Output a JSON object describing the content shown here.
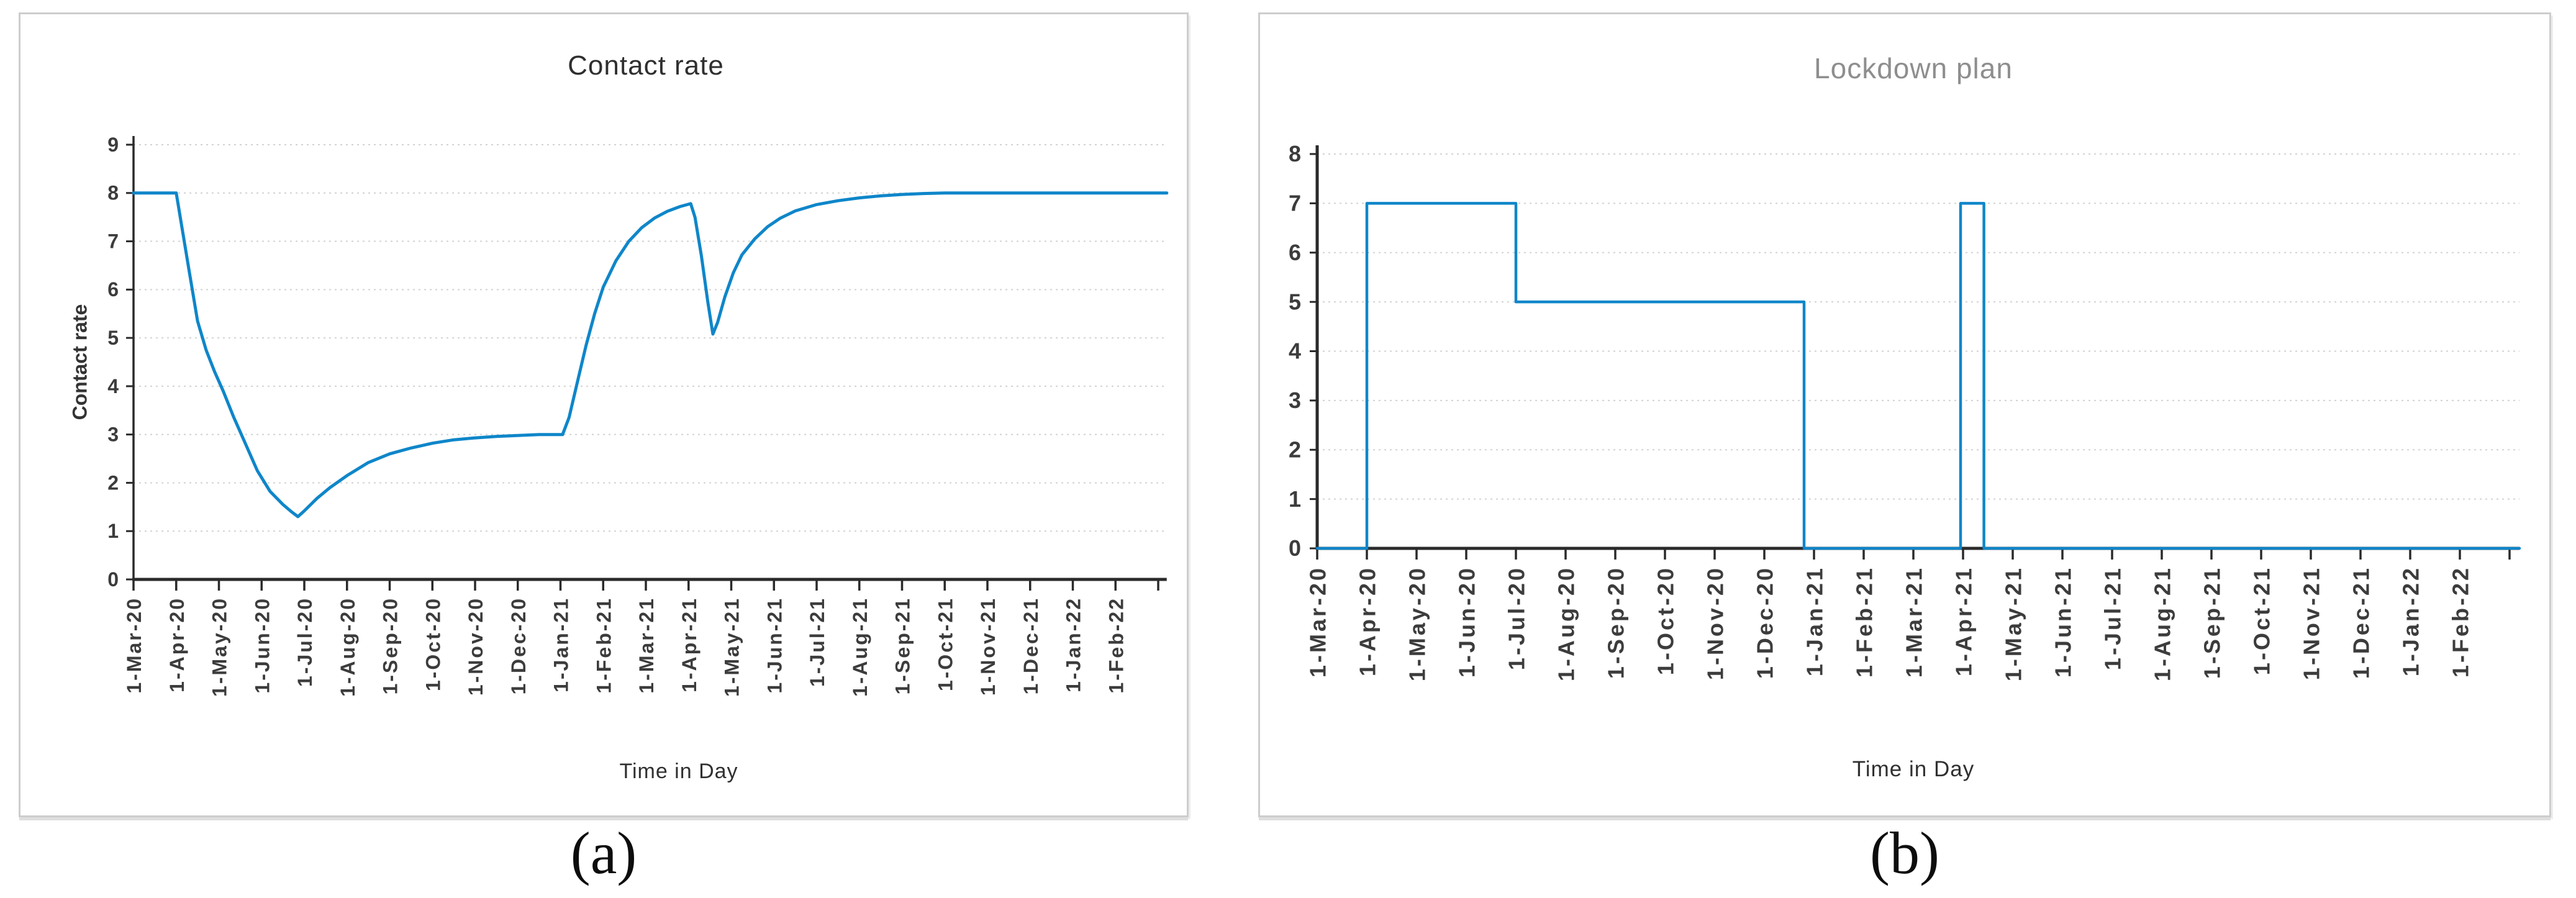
{
  "figure": {
    "panel_a": {
      "title": "Contact rate",
      "y_axis_title": "Contact rate",
      "x_axis_title": "Time in Day",
      "caption": "(a)"
    },
    "panel_b": {
      "title": "Lockdown plan",
      "x_axis_title": "Time in Day",
      "caption": "(b)"
    },
    "colors": {
      "line_blue": "#0f86c9",
      "axis": "#2a2a2a",
      "grid": "#d2d2d2",
      "tick_label": "#3c3c3c",
      "title_a": "#2f2f2f",
      "title_b": "#8e8e8e",
      "panel_border": "#cdcdcd"
    }
  },
  "chart_data": [
    {
      "id": "contact-rate",
      "type": "line",
      "title": "Contact rate",
      "xlabel": "Time in Day",
      "ylabel": "Contact rate",
      "x_unit": "months since 1-Mar-2020",
      "categories": [
        "1-Mar-20",
        "1-Apr-20",
        "1-May-20",
        "1-Jun-20",
        "1-Jul-20",
        "1-Aug-20",
        "1-Sep-20",
        "1-Oct-20",
        "1-Nov-20",
        "1-Dec-20",
        "1-Jan-21",
        "1-Feb-21",
        "1-Mar-21",
        "1-Apr-21",
        "1-May-21",
        "1-Jun-21",
        "1-Jul-21",
        "1-Aug-21",
        "1-Sep-21",
        "1-Oct-21",
        "1-Nov-21",
        "1-Dec-21",
        "1-Jan-22",
        "1-Feb-22"
      ],
      "xlim": [
        0,
        24.2
      ],
      "ylim": [
        0,
        9
      ],
      "y_ticks": [
        0,
        1,
        2,
        3,
        4,
        5,
        6,
        7,
        8,
        9
      ],
      "grid": "horizontal-dotted",
      "legend": "none",
      "series": [
        {
          "name": "Contact rate",
          "color": "#0f86c9",
          "points": [
            [
              0,
              8
            ],
            [
              1,
              8
            ],
            [
              1.15,
              7.2
            ],
            [
              1.3,
              6.4
            ],
            [
              1.5,
              5.35
            ],
            [
              1.7,
              4.75
            ],
            [
              1.9,
              4.3
            ],
            [
              2.1,
              3.9
            ],
            [
              2.35,
              3.35
            ],
            [
              2.6,
              2.85
            ],
            [
              2.9,
              2.25
            ],
            [
              3.2,
              1.82
            ],
            [
              3.5,
              1.55
            ],
            [
              3.7,
              1.4
            ],
            [
              3.85,
              1.3
            ],
            [
              4,
              1.42
            ],
            [
              4.3,
              1.68
            ],
            [
              4.6,
              1.9
            ],
            [
              5,
              2.15
            ],
            [
              5.5,
              2.42
            ],
            [
              6,
              2.6
            ],
            [
              6.5,
              2.72
            ],
            [
              7,
              2.82
            ],
            [
              7.5,
              2.89
            ],
            [
              8,
              2.93
            ],
            [
              8.5,
              2.96
            ],
            [
              9,
              2.98
            ],
            [
              9.5,
              3
            ],
            [
              10.05,
              3
            ],
            [
              10.2,
              3.35
            ],
            [
              10.4,
              4.1
            ],
            [
              10.6,
              4.85
            ],
            [
              10.8,
              5.5
            ],
            [
              11,
              6.05
            ],
            [
              11.3,
              6.6
            ],
            [
              11.6,
              7
            ],
            [
              11.9,
              7.28
            ],
            [
              12.2,
              7.48
            ],
            [
              12.5,
              7.62
            ],
            [
              12.8,
              7.72
            ],
            [
              13.05,
              7.78
            ],
            [
              13.15,
              7.5
            ],
            [
              13.3,
              6.7
            ],
            [
              13.45,
              5.75
            ],
            [
              13.57,
              5.08
            ],
            [
              13.68,
              5.32
            ],
            [
              13.85,
              5.85
            ],
            [
              14.05,
              6.35
            ],
            [
              14.25,
              6.72
            ],
            [
              14.55,
              7.05
            ],
            [
              14.85,
              7.3
            ],
            [
              15.15,
              7.48
            ],
            [
              15.5,
              7.63
            ],
            [
              16,
              7.76
            ],
            [
              16.5,
              7.84
            ],
            [
              17,
              7.9
            ],
            [
              17.5,
              7.94
            ],
            [
              18,
              7.97
            ],
            [
              18.5,
              7.99
            ],
            [
              19,
              8
            ],
            [
              24.2,
              8
            ]
          ]
        }
      ]
    },
    {
      "id": "lockdown-plan",
      "type": "step",
      "title": "Lockdown plan",
      "xlabel": "Time in Day",
      "ylabel": "",
      "x_unit": "months since 1-Mar-2020",
      "categories": [
        "1-Mar-20",
        "1-Apr-20",
        "1-May-20",
        "1-Jun-20",
        "1-Jul-20",
        "1-Aug-20",
        "1-Sep-20",
        "1-Oct-20",
        "1-Nov-20",
        "1-Dec-20",
        "1-Jan-21",
        "1-Feb-21",
        "1-Mar-21",
        "1-Apr-21",
        "1-May-21",
        "1-Jun-21",
        "1-Jul-21",
        "1-Aug-21",
        "1-Sep-21",
        "1-Oct-21",
        "1-Nov-21",
        "1-Dec-21",
        "1-Jan-22",
        "1-Feb-22"
      ],
      "xlim": [
        0,
        24.2
      ],
      "ylim": [
        0,
        8
      ],
      "y_ticks": [
        0,
        1,
        2,
        3,
        4,
        5,
        6,
        7,
        8
      ],
      "grid": "horizontal-dotted",
      "legend": "none",
      "series": [
        {
          "name": "Lockdown plan",
          "color": "#0f86c9",
          "points": [
            [
              0,
              0
            ],
            [
              1,
              0
            ],
            [
              1,
              7
            ],
            [
              4,
              7
            ],
            [
              4,
              5
            ],
            [
              9.8,
              5
            ],
            [
              9.8,
              0
            ],
            [
              12.95,
              0
            ],
            [
              12.95,
              7
            ],
            [
              13.42,
              7
            ],
            [
              13.42,
              0
            ],
            [
              24.2,
              0
            ]
          ]
        }
      ]
    }
  ]
}
